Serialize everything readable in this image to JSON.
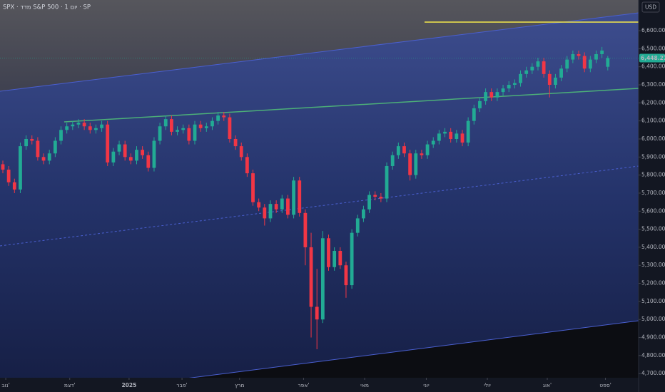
{
  "chart_data": {
    "type": "candlestick",
    "title": "SPX · מדד S&P 500 · 1 יום · SP",
    "currency": "USD",
    "xlim": [
      -0.49,
      109.3
    ],
    "ylim": [
      4677,
      6770
    ],
    "xticks": [
      {
        "value": 0.5,
        "label": "נוב'"
      },
      {
        "value": 11.5,
        "label": "דצמ'"
      },
      {
        "value": 21.7,
        "label": "2025"
      },
      {
        "value": 30.8,
        "label": "פבר'"
      },
      {
        "value": 40.7,
        "label": "מרץ"
      },
      {
        "value": 51.7,
        "label": "אפר'"
      },
      {
        "value": 62.2,
        "label": "מאי"
      },
      {
        "value": 72.8,
        "label": "יוני"
      },
      {
        "value": 83.3,
        "label": "יולי"
      },
      {
        "value": 93.6,
        "label": "אוג'"
      },
      {
        "value": 103.6,
        "label": "ספט'"
      }
    ],
    "yticks": [
      {
        "value": 4700,
        "label": "4,700.00"
      },
      {
        "value": 4800,
        "label": "4,800.00"
      },
      {
        "value": 4900,
        "label": "4,900.00"
      },
      {
        "value": 5000,
        "label": "5,000.00"
      },
      {
        "value": 5100,
        "label": "5,100.00"
      },
      {
        "value": 5200,
        "label": "5,200.00"
      },
      {
        "value": 5300,
        "label": "5,300.00"
      },
      {
        "value": 5400,
        "label": "5,400.00"
      },
      {
        "value": 5500,
        "label": "5,500.00"
      },
      {
        "value": 5600,
        "label": "5,600.00"
      },
      {
        "value": 5700,
        "label": "5,700.00"
      },
      {
        "value": 5800,
        "label": "5,800.00"
      },
      {
        "value": 5900,
        "label": "5,900.00"
      },
      {
        "value": 6000,
        "label": "6,000.00"
      },
      {
        "value": 6100,
        "label": "6,100.00"
      },
      {
        "value": 6200,
        "label": "6,200.00"
      },
      {
        "value": 6300,
        "label": "6,300.00"
      },
      {
        "value": 6400,
        "label": "6,400.00"
      },
      {
        "value": 6500,
        "label": "6,500.00"
      },
      {
        "value": 6600,
        "label": "6,600.00"
      }
    ],
    "last_price": {
      "value": 6448.27,
      "label": "6,448.27"
    },
    "series": [
      {
        "up_color": "#22ab94",
        "down_color": "#f23645",
        "open": [
          5860,
          5830,
          5760,
          5720,
          5960,
          6000,
          5990,
          5900,
          5880,
          5920,
          5990,
          6050,
          6070,
          6080,
          6090,
          6070,
          6050,
          6060,
          6080,
          5870,
          5930,
          5970,
          5900,
          5880,
          5940,
          5910,
          5840,
          5990,
          6070,
          6110,
          6040,
          6050,
          6060,
          5990,
          6080,
          6060,
          6070,
          6100,
          6130,
          6120,
          6000,
          5960,
          5900,
          5810,
          5650,
          5620,
          5560,
          5640,
          5610,
          5670,
          5580,
          5770,
          5590,
          5400,
          5070,
          5000,
          5450,
          5290,
          5380,
          5300,
          5190,
          5480,
          5560,
          5610,
          5690,
          5680,
          5670,
          5850,
          5910,
          5960,
          5920,
          5800,
          5920,
          5910,
          5970,
          5990,
          6030,
          6040,
          6000,
          6030,
          5980,
          6100,
          6170,
          6210,
          6260,
          6230,
          6260,
          6280,
          6300,
          6310,
          6360,
          6380,
          6400,
          6430,
          6360,
          6300,
          6340,
          6390,
          6440,
          6470,
          6460,
          6390,
          6440,
          6470,
          6400
        ],
        "high": [
          5880,
          5850,
          5780,
          5980,
          6020,
          6020,
          6010,
          5920,
          5940,
          6010,
          6070,
          6090,
          6100,
          6110,
          6110,
          6090,
          6080,
          6100,
          6100,
          5950,
          5990,
          5990,
          5920,
          5960,
          5960,
          5930,
          6010,
          6090,
          6130,
          6130,
          6070,
          6080,
          6080,
          6100,
          6100,
          6090,
          6120,
          6150,
          6150,
          6140,
          6020,
          5980,
          5920,
          5830,
          5670,
          5640,
          5660,
          5660,
          5690,
          5690,
          5790,
          5790,
          5610,
          5480,
          5280,
          5490,
          5470,
          5400,
          5400,
          5320,
          5500,
          5580,
          5630,
          5710,
          5710,
          5700,
          5870,
          5930,
          5980,
          5980,
          5940,
          5940,
          5940,
          5990,
          6010,
          6050,
          6060,
          6060,
          6050,
          6050,
          6120,
          6190,
          6230,
          6280,
          6280,
          6280,
          6300,
          6320,
          6330,
          6380,
          6400,
          6420,
          6450,
          6450,
          6380,
          6360,
          6410,
          6460,
          6490,
          6490,
          6480,
          6460,
          6490,
          6510,
          6460
        ],
        "low": [
          5810,
          5740,
          5700,
          5700,
          5940,
          5970,
          5880,
          5860,
          5860,
          5900,
          5970,
          6030,
          6050,
          6060,
          6050,
          6030,
          6030,
          6040,
          5850,
          5850,
          5910,
          5880,
          5860,
          5860,
          5890,
          5820,
          5820,
          5970,
          6050,
          6020,
          6020,
          6030,
          5970,
          5970,
          6040,
          6040,
          6050,
          6080,
          6100,
          5980,
          5940,
          5880,
          5790,
          5630,
          5600,
          5520,
          5540,
          5590,
          5590,
          5560,
          5560,
          5570,
          5300,
          4900,
          4835,
          4980,
          5270,
          5270,
          5280,
          5120,
          5170,
          5460,
          5540,
          5590,
          5660,
          5650,
          5650,
          5830,
          5890,
          5900,
          5770,
          5780,
          5890,
          5890,
          5950,
          5970,
          6010,
          5980,
          5980,
          5960,
          5960,
          6080,
          6150,
          6190,
          6210,
          6210,
          6240,
          6260,
          6280,
          6290,
          6340,
          6360,
          6380,
          6340,
          6230,
          6280,
          6320,
          6370,
          6420,
          6440,
          6370,
          6370,
          6420,
          6450,
          6380
        ],
        "close": [
          5830,
          5760,
          5720,
          5960,
          6000,
          5990,
          5900,
          5880,
          5920,
          5990,
          6050,
          6070,
          6080,
          6090,
          6070,
          6050,
          6060,
          6080,
          5870,
          5930,
          5970,
          5900,
          5880,
          5940,
          5910,
          5840,
          5990,
          6070,
          6110,
          6040,
          6050,
          6060,
          5990,
          6080,
          6060,
          6070,
          6100,
          6130,
          6120,
          6000,
          5960,
          5900,
          5810,
          5650,
          5620,
          5560,
          5640,
          5610,
          5670,
          5580,
          5770,
          5590,
          5400,
          5070,
          5000,
          5450,
          5290,
          5380,
          5300,
          5190,
          5480,
          5560,
          5610,
          5690,
          5680,
          5670,
          5850,
          5910,
          5960,
          5920,
          5800,
          5920,
          5910,
          5970,
          5990,
          6030,
          6040,
          6000,
          6030,
          5980,
          6100,
          6170,
          6210,
          6260,
          6230,
          6260,
          6280,
          6300,
          6310,
          6360,
          6380,
          6400,
          6430,
          6360,
          6300,
          6340,
          6390,
          6440,
          6470,
          6460,
          6390,
          6440,
          6470,
          6490,
          6448.27
        ]
      }
    ]
  }
}
